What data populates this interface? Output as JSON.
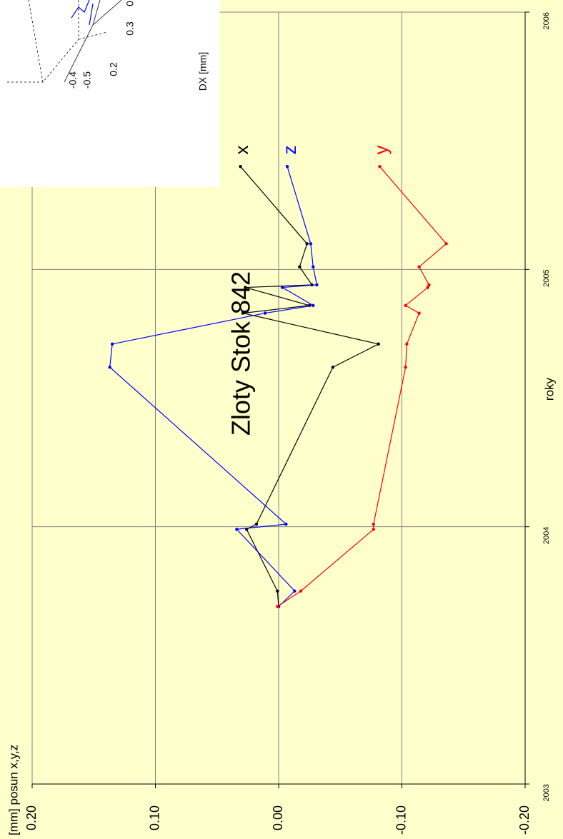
{
  "chart_data": {
    "type": "line",
    "title": "Zloty Stok 842",
    "y_label": "[mm] posun x,y,z",
    "x_label": "roky",
    "x": [
      2003.69,
      2003.75,
      2003.99,
      2004.01,
      2004.62,
      2004.71,
      2004.83,
      2004.86,
      2004.93,
      2004.94,
      2005.01,
      2005.1,
      2005.4
    ],
    "series": [
      {
        "name": "x",
        "color": "#000000",
        "values": [
          0.0,
          0.001,
          0.026,
          0.018,
          -0.044,
          -0.081,
          0.029,
          -0.025,
          0.027,
          -0.027,
          -0.017,
          -0.023,
          0.031
        ]
      },
      {
        "name": "z",
        "color": "#0000ff",
        "values": [
          0.0,
          -0.013,
          0.034,
          -0.006,
          0.137,
          0.135,
          0.011,
          -0.028,
          -0.003,
          -0.031,
          -0.028,
          -0.026,
          -0.007
        ]
      },
      {
        "name": "y",
        "color": "#ff0000",
        "values": [
          0.001,
          -0.018,
          -0.077,
          -0.077,
          -0.103,
          -0.104,
          -0.114,
          -0.103,
          -0.121,
          -0.122,
          -0.114,
          -0.136,
          -0.082
        ]
      }
    ],
    "xlim": [
      2003,
      2006
    ],
    "xticks": [
      2003,
      2004,
      2005,
      2006
    ],
    "ylim": [
      -0.2,
      0.2
    ],
    "yticks": [
      {
        "value": 0.2,
        "label": "0.20"
      },
      {
        "value": 0.1,
        "label": "0.10"
      },
      {
        "value": 0,
        "label": "0.00"
      },
      {
        "value": -0.1,
        "label": "-0.10"
      },
      {
        "value": -0.2,
        "label": "-0.20"
      }
    ],
    "grid": true,
    "background": "#ffffcc"
  },
  "inset": {
    "labels": [
      "-0.4",
      "-0.5",
      "0.2",
      "0.3",
      "0"
    ],
    "axis_label": "DX [mm]"
  }
}
